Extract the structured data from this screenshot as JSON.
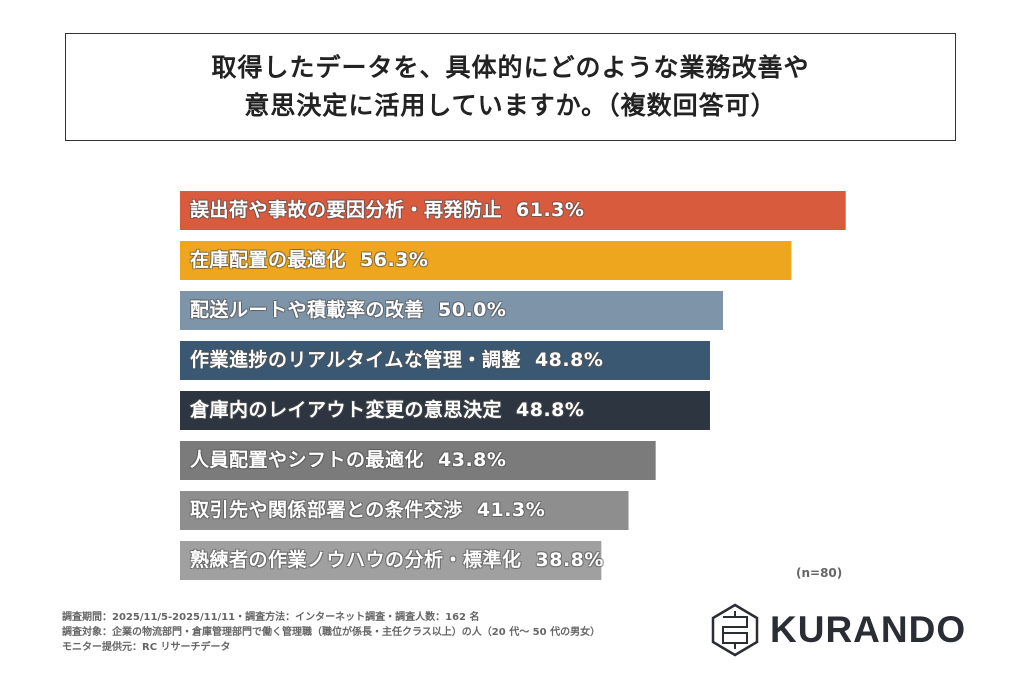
{
  "title": {
    "line1": "取得したデータを、具体的にどのような業務改善や",
    "line2": "意思決定に活用していますか。（複数回答可）"
  },
  "chart_data": {
    "type": "bar",
    "orientation": "horizontal",
    "categories": [
      "誤出荷や事故の要因分析・再発防止",
      "在庫配置の最適化",
      "配送ルートや積載率の改善",
      "作業進捗のリアルタイムな管理・調整",
      "倉庫内のレイアウト変更の意思決定",
      "人員配置やシフトの最適化",
      "取引先や関係部署との条件交渉",
      "熟練者の作業ノウハウの分析・標準化"
    ],
    "values": [
      61.3,
      56.3,
      50.0,
      48.8,
      48.8,
      43.8,
      41.3,
      38.8
    ],
    "value_labels": [
      "61.3%",
      "56.3%",
      "50.0%",
      "48.8%",
      "48.8%",
      "43.8%",
      "41.3%",
      "38.8%"
    ],
    "colors": [
      "#d95b3e",
      "#eea61e",
      "#7d94a9",
      "#3b5873",
      "#2c3540",
      "#7b7b7b",
      "#8e8e8e",
      "#a0a0a0"
    ],
    "xlim": [
      0,
      100
    ],
    "grid": false,
    "sample_size": "(n=80)"
  },
  "notes": [
    "調査期間：2025/11/5-2025/11/11・調査方法：インターネット調査・調査人数：162 名",
    "調査対象：企業の物流部門・倉庫管理部門で働く管理職（職位が係長・主任クラス以上）の人（20 代～ 50 代の男女）",
    "モニター提供元：RC リサーチデータ"
  ],
  "logo": {
    "text": "KURANDO"
  }
}
